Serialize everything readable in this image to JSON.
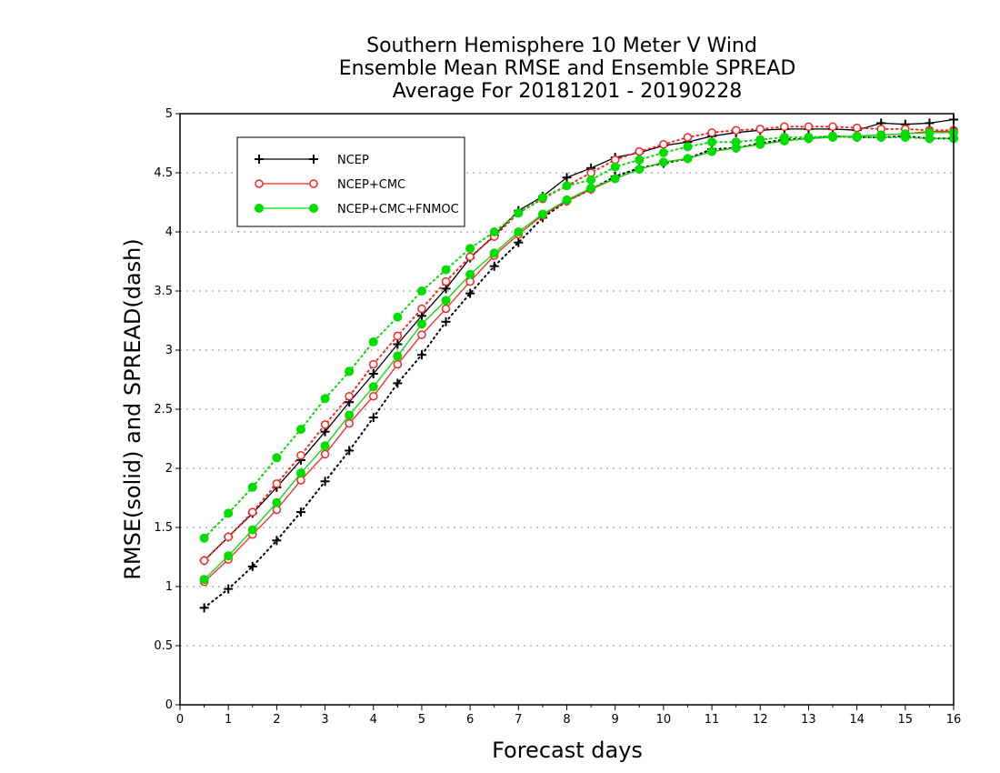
{
  "chart_data": {
    "type": "line",
    "title_lines": [
      "Southern Hemisphere 10 Meter V Wind",
      "Ensemble Mean RMSE and Ensemble SPREAD",
      "Average For 20181201 - 20190228"
    ],
    "xlabel": "Forecast days",
    "ylabel": "RMSE(solid) and SPREAD(dash)",
    "xlim": [
      0,
      16
    ],
    "ylim": [
      0,
      5
    ],
    "x_ticks": [
      "0",
      "1",
      "2",
      "3",
      "4",
      "5",
      "6",
      "7",
      "8",
      "9",
      "10",
      "11",
      "12",
      "13",
      "14",
      "15",
      "16"
    ],
    "y_ticks": [
      "0",
      "0.5",
      "1",
      "1.5",
      "2",
      "2.5",
      "3",
      "3.5",
      "4",
      "4.5",
      "5"
    ],
    "grid": "horizontal dotted",
    "legend_position": "top-left",
    "x": [
      0.5,
      1,
      1.5,
      2,
      2.5,
      3,
      3.5,
      4,
      4.5,
      5,
      5.5,
      6,
      6.5,
      7,
      7.5,
      8,
      8.5,
      9,
      9.5,
      10,
      10.5,
      11,
      11.5,
      12,
      12.5,
      13,
      13.5,
      14,
      14.5,
      15,
      15.5,
      16
    ],
    "series": [
      {
        "name": "NCEP",
        "color": "#000000",
        "marker": "plus",
        "rmse": [
          1.22,
          1.42,
          1.62,
          1.84,
          2.07,
          2.31,
          2.56,
          2.8,
          3.05,
          3.29,
          3.52,
          3.78,
          3.97,
          4.18,
          4.3,
          4.46,
          4.54,
          4.63,
          4.67,
          4.73,
          4.76,
          4.81,
          4.84,
          4.86,
          4.87,
          4.87,
          4.87,
          4.86,
          4.92,
          4.91,
          4.92,
          4.95
        ],
        "spread": [
          0.82,
          0.98,
          1.17,
          1.39,
          1.63,
          1.89,
          2.15,
          2.43,
          2.72,
          2.96,
          3.24,
          3.48,
          3.71,
          3.91,
          4.12,
          4.26,
          4.36,
          4.47,
          4.54,
          4.58,
          4.62,
          4.7,
          4.71,
          4.75,
          4.78,
          4.79,
          4.81,
          4.8,
          4.8,
          4.81,
          4.79,
          4.79
        ]
      },
      {
        "name": "NCEP+CMC",
        "color": "#ff2222",
        "marker": "open-circle",
        "rmse": [
          1.04,
          1.23,
          1.44,
          1.65,
          1.9,
          2.12,
          2.38,
          2.61,
          2.88,
          3.13,
          3.35,
          3.58,
          3.8,
          3.98,
          4.14,
          4.26,
          4.36,
          4.45,
          4.53,
          4.59,
          4.62,
          4.68,
          4.71,
          4.74,
          4.77,
          4.79,
          4.8,
          4.81,
          4.82,
          4.83,
          4.85,
          4.85
        ],
        "spread": [
          1.22,
          1.42,
          1.63,
          1.87,
          2.11,
          2.37,
          2.61,
          2.88,
          3.12,
          3.35,
          3.58,
          3.79,
          3.96,
          4.16,
          4.28,
          4.39,
          4.5,
          4.61,
          4.68,
          4.74,
          4.8,
          4.84,
          4.86,
          4.87,
          4.89,
          4.89,
          4.89,
          4.88,
          4.87,
          4.87,
          4.86,
          4.86
        ]
      },
      {
        "name": "NCEP+CMC+FNMOC",
        "color": "#00dd00",
        "marker": "filled-circle",
        "rmse": [
          1.06,
          1.26,
          1.48,
          1.71,
          1.96,
          2.19,
          2.45,
          2.69,
          2.95,
          3.22,
          3.42,
          3.64,
          3.82,
          4.0,
          4.15,
          4.27,
          4.37,
          4.45,
          4.53,
          4.59,
          4.62,
          4.68,
          4.71,
          4.74,
          4.77,
          4.79,
          4.8,
          4.81,
          4.82,
          4.83,
          4.84,
          4.84
        ],
        "spread": [
          1.41,
          1.62,
          1.84,
          2.09,
          2.33,
          2.59,
          2.82,
          3.07,
          3.28,
          3.5,
          3.68,
          3.86,
          4.0,
          4.16,
          4.29,
          4.39,
          4.44,
          4.55,
          4.61,
          4.67,
          4.72,
          4.76,
          4.76,
          4.78,
          4.8,
          4.8,
          4.81,
          4.8,
          4.8,
          4.8,
          4.79,
          4.79
        ]
      }
    ]
  }
}
